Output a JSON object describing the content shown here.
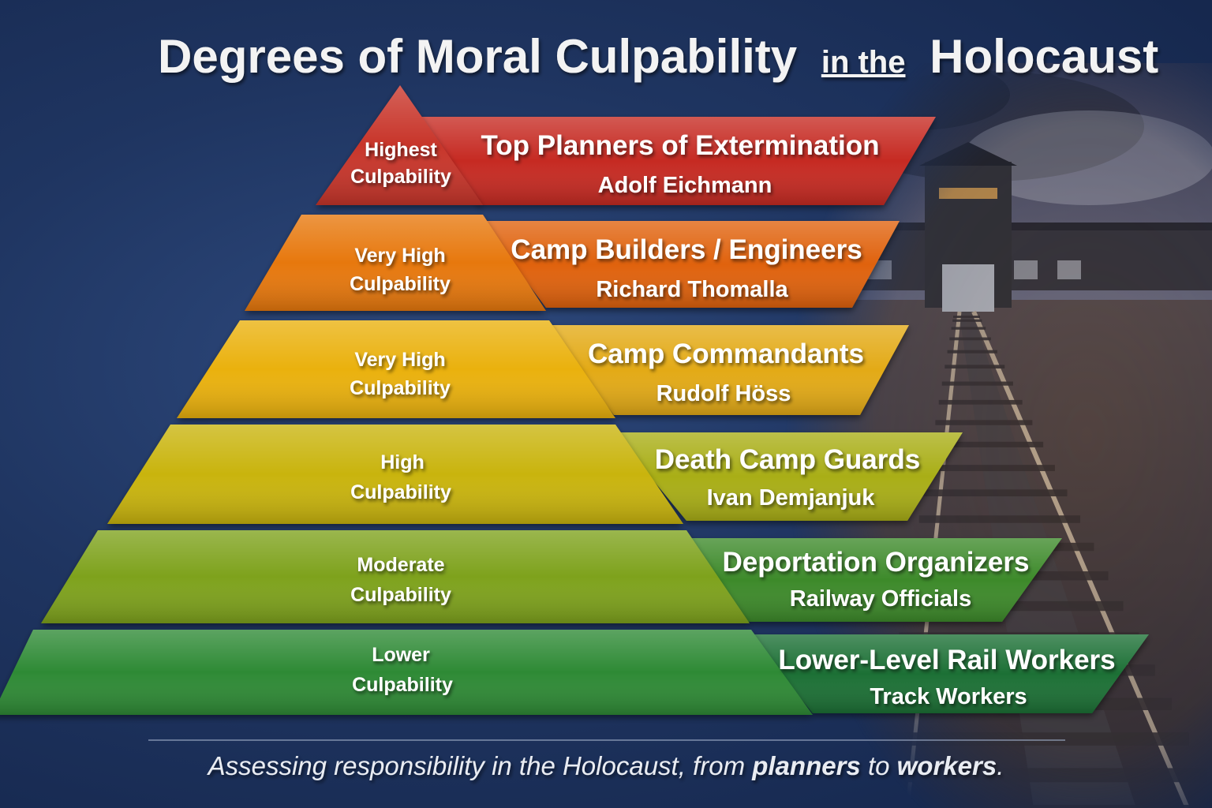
{
  "title": {
    "part1": "Degrees of Moral Culpability",
    "part2": "in the",
    "part3": "Holocaust"
  },
  "levels": [
    {
      "label_line1": "Highest",
      "label_line2": "Culpability",
      "role": "Top Planners of Extermination",
      "example": "Adolf Eichmann",
      "color": "#c62a24"
    },
    {
      "label_line1": "Very High",
      "label_line2": "Culpability",
      "role": "Camp Builders / Engineers",
      "example": "Richard Thomalla",
      "color": "#e0620d"
    },
    {
      "label_line1": "Very High",
      "label_line2": "Culpability",
      "role": "Camp Commandants",
      "example": "Rudolf Höss",
      "color": "#e6a70c"
    },
    {
      "label_line1": "High",
      "label_line2": "Culpability",
      "role": "Death Camp Guards",
      "example": "Ivan Demjanjuk",
      "color": "#b0ae12"
    },
    {
      "label_line1": "Moderate",
      "label_line2": "Culpability",
      "role": "Deportation Organizers",
      "example": "Railway Officials",
      "color": "#6f9a22"
    },
    {
      "label_line1": "Lower",
      "label_line2": "Culpability",
      "role": "Lower-Level Rail Workers",
      "example": "Track Workers",
      "color": "#2c7f33"
    }
  ],
  "caption": {
    "part1": "Assessing responsibility in the Holocaust, from ",
    "bold1": "planners",
    "part2": " to ",
    "bold2": "workers",
    "part3": "."
  }
}
